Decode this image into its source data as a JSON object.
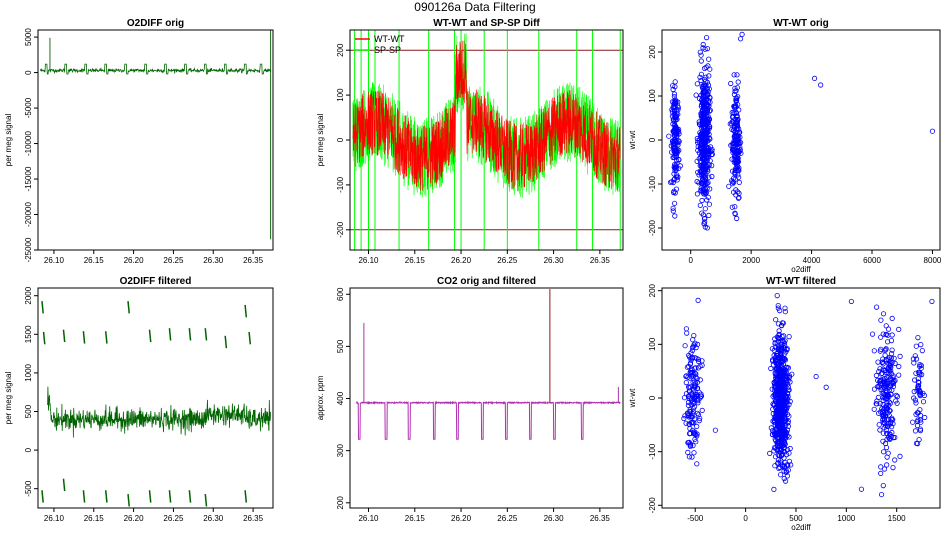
{
  "figure_title": "090126a   Data Filtering",
  "colors": {
    "green": "#006400",
    "red": "#ff0000",
    "lime": "#00ff00",
    "maroon": "#8b1a1a",
    "blue": "#0000ff",
    "purple": "#b030b0"
  },
  "chart_data": [
    {
      "id": "p1",
      "type": "line",
      "title": "O2DIFF orig",
      "xlabel": "",
      "ylabel": "per meg signal",
      "xlim": [
        26.08,
        26.375
      ],
      "ylim": [
        -25000,
        6000
      ],
      "xticks": [
        "26.10",
        "26.15",
        "26.20",
        "26.25",
        "26.30",
        "26.35"
      ],
      "xtick_values": [
        26.1,
        26.15,
        26.2,
        26.25,
        26.3,
        26.35
      ],
      "yticks": [
        "-25000",
        "-20000",
        "-15000",
        "-10000",
        "-5000",
        "0",
        "5000"
      ],
      "ytick_values": [
        -25000,
        -20000,
        -15000,
        -10000,
        -5000,
        0,
        5000
      ],
      "series": [
        {
          "name": "o2diff",
          "color": "#006400",
          "baseline": 300,
          "noise": 120,
          "spikes": [
            [
              26.095,
              4900
            ],
            [
              26.372,
              8000
            ],
            [
              26.372,
              -23500
            ]
          ],
          "dips": [
            26.09,
            26.115,
            26.14,
            26.165,
            26.19,
            26.215,
            26.24,
            26.265,
            26.29,
            26.315,
            26.34,
            26.36
          ]
        }
      ]
    },
    {
      "id": "p2",
      "type": "line",
      "title": "WT-WT and SP-SP Diff",
      "xlabel": "",
      "ylabel": "per meg signal",
      "xlim": [
        26.08,
        26.375
      ],
      "ylim": [
        -245,
        245
      ],
      "xticks": [
        "26.10",
        "26.15",
        "26.20",
        "26.25",
        "26.30",
        "26.35"
      ],
      "xtick_values": [
        26.1,
        26.15,
        26.2,
        26.25,
        26.3,
        26.35
      ],
      "yticks": [
        "-200",
        "-100",
        "0",
        "100",
        "200"
      ],
      "ytick_values": [
        -200,
        -100,
        0,
        100,
        200
      ],
      "hlines": [
        200,
        -200
      ],
      "legend": {
        "position": "top-left",
        "entries": [
          "WT-WT",
          "SP-SP"
        ]
      },
      "series": [
        {
          "name": "WT-WT",
          "color": "#ff0000",
          "range": [
            -150,
            150
          ]
        },
        {
          "name": "SP-SP",
          "color": "#00ff00",
          "range": [
            -180,
            180
          ],
          "vertical_spikes": [
            26.085,
            26.092,
            26.1,
            26.107,
            26.133,
            26.165,
            26.193,
            26.2,
            26.225,
            26.25,
            26.284,
            26.325,
            26.342,
            26.372
          ]
        }
      ]
    },
    {
      "id": "p3",
      "type": "scatter",
      "title": "WT-WT orig",
      "xlabel": "o2diff",
      "ylabel": "wt-wt",
      "xlim": [
        -950,
        8250
      ],
      "ylim": [
        -250,
        250
      ],
      "xticks": [
        "0",
        "2000",
        "4000",
        "6000",
        "8000"
      ],
      "xtick_values": [
        0,
        2000,
        4000,
        6000,
        8000
      ],
      "yticks": [
        "-200",
        "-100",
        "0",
        "100",
        "200"
      ],
      "ytick_values": [
        -200,
        -100,
        0,
        100,
        200
      ],
      "clusters": [
        {
          "x": -500,
          "xs": 100,
          "n": 160,
          "ys": 55
        },
        {
          "x": 450,
          "xs": 150,
          "n": 420,
          "ys": 80
        },
        {
          "x": 1500,
          "xs": 120,
          "n": 180,
          "ys": 70
        }
      ],
      "outliers": [
        [
          4100,
          140
        ],
        [
          4300,
          125
        ],
        [
          8000,
          20
        ],
        [
          1700,
          240
        ],
        [
          1650,
          230
        ]
      ],
      "series": [
        {
          "name": "wt-wt",
          "color": "#0000ff"
        }
      ]
    },
    {
      "id": "p4",
      "type": "line",
      "title": "O2DIFF filtered",
      "xlabel": "",
      "ylabel": "per meg signal",
      "xlim": [
        26.08,
        26.375
      ],
      "ylim": [
        -750,
        2100
      ],
      "xticks": [
        "26.10",
        "26.15",
        "26.20",
        "26.25",
        "26.30",
        "26.35"
      ],
      "xtick_values": [
        26.1,
        26.15,
        26.2,
        26.25,
        26.3,
        26.35
      ],
      "yticks": [
        "-500",
        "0",
        "500",
        "1000",
        "1500",
        "2000"
      ],
      "ytick_values": [
        -500,
        0,
        500,
        1000,
        1500,
        2000
      ],
      "segments_high": [
        [
          26.085,
          1850
        ],
        [
          26.087,
          1450
        ],
        [
          26.112,
          1480
        ],
        [
          26.137,
          1460
        ],
        [
          26.165,
          1460
        ],
        [
          26.193,
          1850
        ],
        [
          26.22,
          1480
        ],
        [
          26.245,
          1500
        ],
        [
          26.27,
          1500
        ],
        [
          26.29,
          1500
        ],
        [
          26.315,
          1400
        ],
        [
          26.34,
          1800
        ],
        [
          26.345,
          1450
        ]
      ],
      "segments_low": [
        [
          26.085,
          -600
        ],
        [
          26.112,
          -450
        ],
        [
          26.137,
          -600
        ],
        [
          26.165,
          -600
        ],
        [
          26.193,
          -650
        ],
        [
          26.22,
          -600
        ],
        [
          26.245,
          -600
        ],
        [
          26.27,
          -600
        ],
        [
          26.29,
          -650
        ],
        [
          26.34,
          -600
        ]
      ],
      "series": [
        {
          "name": "o2diff filtered",
          "color": "#006400",
          "baseline": 400,
          "noise": 70
        }
      ]
    },
    {
      "id": "p5",
      "type": "line",
      "title": "CO2 orig and filtered",
      "xlabel": "",
      "ylabel": "approx. ppm",
      "xlim": [
        26.08,
        26.375
      ],
      "ylim": [
        190,
        612
      ],
      "xticks": [
        "26.10",
        "26.15",
        "26.20",
        "26.25",
        "26.30",
        "26.35"
      ],
      "xtick_values": [
        26.1,
        26.15,
        26.2,
        26.25,
        26.3,
        26.35
      ],
      "yticks": [
        "200",
        "300",
        "400",
        "500",
        "600"
      ],
      "ytick_values": [
        200,
        300,
        400,
        500,
        600
      ],
      "series": [
        {
          "name": "orig",
          "color": "#8b1a1a",
          "spike": [
            26.296,
            610
          ]
        },
        {
          "name": "filtered",
          "color": "#b030b0",
          "baseline": 392,
          "dip_to": 322,
          "dips": [
            26.089,
            26.118,
            26.143,
            26.17,
            26.195,
            26.222,
            26.248,
            26.274,
            26.3,
            26.33
          ],
          "spike": [
            26.095,
            545
          ],
          "end_spike": [
            26.37,
            422
          ]
        }
      ]
    },
    {
      "id": "p6",
      "type": "scatter",
      "title": "WT-WT filtered",
      "xlabel": "o2diff",
      "ylabel": "wt-wt",
      "xlim": [
        -830,
        1930
      ],
      "ylim": [
        -205,
        205
      ],
      "xticks": [
        "-500",
        "0",
        "500",
        "1000",
        "1500"
      ],
      "xtick_values": [
        -500,
        0,
        500,
        1000,
        1500
      ],
      "yticks": [
        "-200",
        "-100",
        "0",
        "100",
        "200"
      ],
      "ytick_values": [
        -200,
        -100,
        0,
        100,
        200
      ],
      "clusters": [
        {
          "x": -530,
          "xs": 70,
          "n": 160,
          "ys": 55
        },
        {
          "x": 350,
          "xs": 60,
          "n": 700,
          "ys": 60
        },
        {
          "x": 1400,
          "xs": 80,
          "n": 220,
          "ys": 60
        },
        {
          "x": 1720,
          "xs": 40,
          "n": 60,
          "ys": 50
        }
      ],
      "outliers": [
        [
          -300,
          -60
        ],
        [
          700,
          40
        ],
        [
          800,
          20
        ],
        [
          1050,
          180
        ],
        [
          1150,
          -170
        ],
        [
          1850,
          180
        ],
        [
          1350,
          -180
        ]
      ],
      "series": [
        {
          "name": "wt-wt",
          "color": "#0000ff"
        }
      ]
    }
  ]
}
